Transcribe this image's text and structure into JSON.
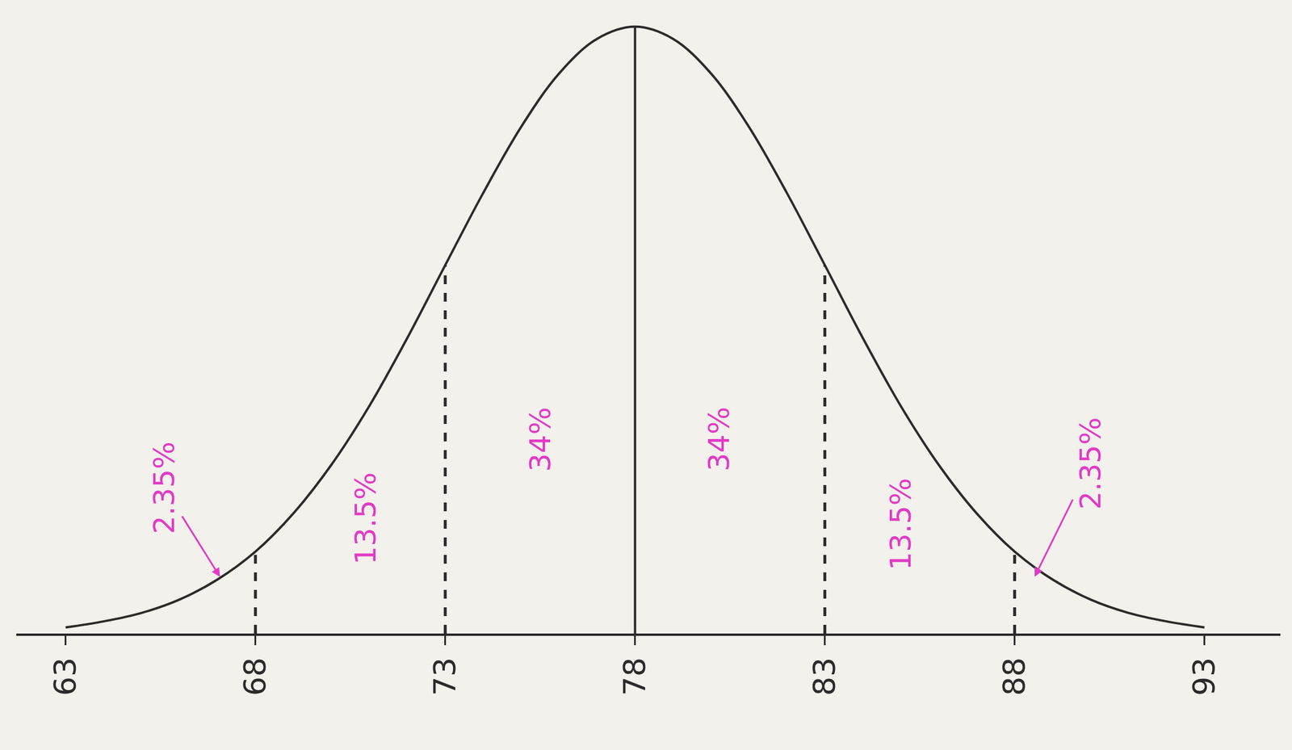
{
  "chart_data": {
    "type": "line",
    "x": [
      63,
      64,
      65,
      66,
      67,
      68,
      69,
      70,
      71,
      72,
      73,
      74,
      75,
      76,
      77,
      78,
      79,
      80,
      81,
      82,
      83,
      84,
      85,
      86,
      87,
      88,
      89,
      90,
      91,
      92,
      93
    ],
    "values": [
      1,
      2,
      3.4,
      5.6,
      8.9,
      13.5,
      19.8,
      27.8,
      37.5,
      48.7,
      60.7,
      72.6,
      83.5,
      92.3,
      98,
      100,
      98,
      92.3,
      83.5,
      72.6,
      60.7,
      48.7,
      37.5,
      27.8,
      19.8,
      13.5,
      8.9,
      5.6,
      3.4,
      2,
      1
    ],
    "color": "#2b2b2b",
    "xlim": [
      61.7,
      95
    ],
    "xticks": [
      63,
      68,
      73,
      78,
      83,
      88,
      93
    ],
    "ylim": [
      0,
      102
    ],
    "yticks": [],
    "tick_labels": "x",
    "grid": false,
    "reference_lines": [
      {
        "x": 68,
        "line_style": "dashed"
      },
      {
        "x": 73,
        "line_style": "dashed"
      },
      {
        "x": 78,
        "line_style": "solid"
      },
      {
        "x": 83,
        "line_style": "dashed"
      },
      {
        "x": 88,
        "line_style": "dashed"
      }
    ],
    "annotations": [
      {
        "text": "2.35%",
        "x": 65.6,
        "y": 24,
        "arrow_to": [
          67.1,
          9
        ]
      },
      {
        "text": "13.5%",
        "x": 70.9,
        "y": 19
      },
      {
        "text": "34%",
        "x": 75.5,
        "y": 32
      },
      {
        "text": "34%",
        "x": 80.2,
        "y": 32
      },
      {
        "text": "13.5%",
        "x": 85,
        "y": 18
      },
      {
        "text": "2.35%",
        "x": 90,
        "y": 28,
        "arrow_to": [
          88.5,
          9
        ]
      }
    ],
    "annotation_color": "#e23ac6"
  }
}
